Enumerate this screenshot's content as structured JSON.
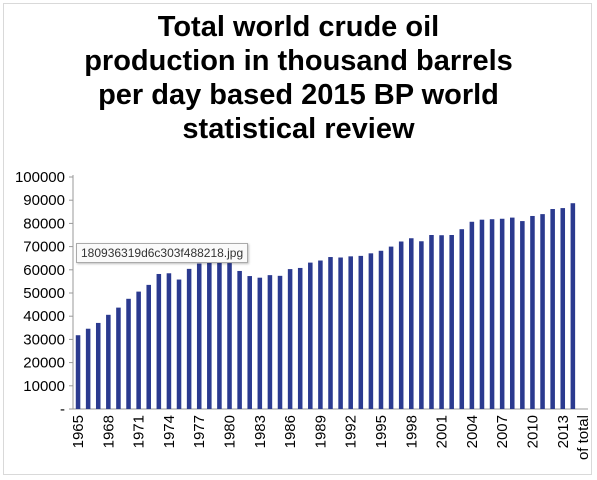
{
  "title_lines": [
    "Total world crude oil",
    "production in thousand barrels",
    "per day based 2015 BP world",
    "statistical review"
  ],
  "tooltip": "180936319d6c303f488218.jpg",
  "colors": {
    "bar": "#2b3a8f",
    "axis": "#999999"
  },
  "chart_data": {
    "type": "bar",
    "title": "Total world crude oil production in thousand barrels per day based 2015 BP world statistical review",
    "xlabel": "",
    "ylabel": "",
    "ylim": [
      0,
      100000
    ],
    "grid": false,
    "y_ticks": [
      "-",
      "10000",
      "20000",
      "30000",
      "40000",
      "50000",
      "60000",
      "70000",
      "80000",
      "90000",
      "100000"
    ],
    "x_tick_labels": [
      "1965",
      "1968",
      "1971",
      "1974",
      "1977",
      "1980",
      "1983",
      "1986",
      "1989",
      "1992",
      "1995",
      "1998",
      "2001",
      "2004",
      "2007",
      "2010",
      "2013",
      "of total"
    ],
    "categories": [
      "1965",
      "1966",
      "1967",
      "1968",
      "1969",
      "1970",
      "1971",
      "1972",
      "1973",
      "1974",
      "1975",
      "1976",
      "1977",
      "1978",
      "1979",
      "1980",
      "1981",
      "1982",
      "1983",
      "1984",
      "1985",
      "1986",
      "1987",
      "1988",
      "1989",
      "1990",
      "1991",
      "1992",
      "1993",
      "1994",
      "1995",
      "1996",
      "1997",
      "1998",
      "1999",
      "2000",
      "2001",
      "2002",
      "2003",
      "2004",
      "2005",
      "2006",
      "2007",
      "2008",
      "2009",
      "2010",
      "2011",
      "2012",
      "2013",
      "2014",
      "of total"
    ],
    "values": [
      31800,
      34600,
      37100,
      40600,
      43700,
      47500,
      50600,
      53500,
      58200,
      58500,
      55800,
      60400,
      62700,
      63300,
      66000,
      62900,
      59500,
      57300,
      56600,
      57700,
      57400,
      60300,
      60800,
      63100,
      64000,
      65500,
      65300,
      65800,
      66000,
      67100,
      68200,
      70000,
      72200,
      73600,
      72300,
      75000,
      74900,
      75000,
      77500,
      80700,
      81600,
      81800,
      82000,
      82500,
      81000,
      83200,
      84000,
      86200,
      86600,
      88700,
      0
    ]
  }
}
